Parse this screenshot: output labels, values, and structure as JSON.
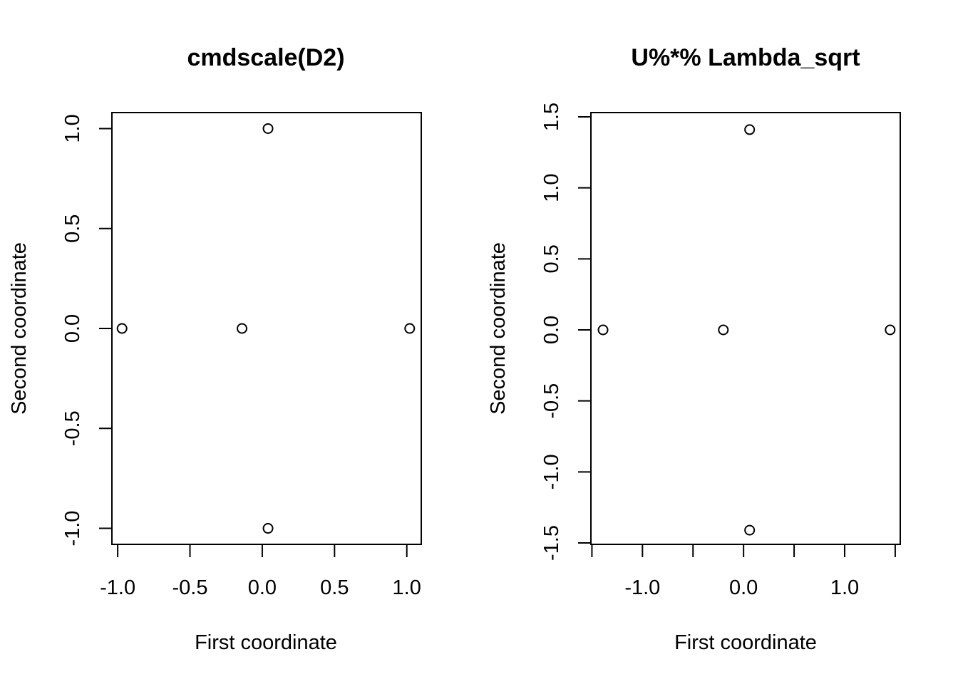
{
  "chart_data": [
    {
      "type": "scatter",
      "title": "cmdscale(D2)",
      "xlabel": "First coordinate",
      "ylabel": "Second coordinate",
      "xlim": [
        -1.04,
        1.1
      ],
      "ylim": [
        -1.08,
        1.08
      ],
      "x_ticks": [
        -1.0,
        -0.5,
        0.0,
        0.5,
        1.0
      ],
      "x_tick_labels": [
        "-1.0",
        "-0.5",
        "0.0",
        "0.5",
        "1.0"
      ],
      "y_ticks": [
        -1.0,
        -0.5,
        0.0,
        0.5,
        1.0
      ],
      "y_tick_labels": [
        "-1.0",
        "-0.5",
        "0.0",
        "0.5",
        "1.0"
      ],
      "grid": false,
      "marker": "open-circle",
      "points": [
        {
          "x": -0.97,
          "y": 0.0
        },
        {
          "x": -0.14,
          "y": 0.0
        },
        {
          "x": 0.04,
          "y": 1.0
        },
        {
          "x": 0.04,
          "y": -1.0
        },
        {
          "x": 1.02,
          "y": 0.0
        }
      ]
    },
    {
      "type": "scatter",
      "title": "U%*% Lambda_sqrt",
      "xlabel": "First coordinate",
      "ylabel": "Second coordinate",
      "xlim": [
        -1.51,
        1.55
      ],
      "ylim": [
        -1.51,
        1.53
      ],
      "x_ticks": [
        -1.5,
        -1.0,
        -0.5,
        0.0,
        0.5,
        1.0,
        1.5
      ],
      "x_tick_labels": [
        "",
        "-1.0",
        "",
        "0.0",
        "",
        "1.0",
        ""
      ],
      "y_ticks": [
        -1.5,
        -1.0,
        -0.5,
        0.0,
        0.5,
        1.0,
        1.5
      ],
      "y_tick_labels": [
        "-1.5",
        "-1.0",
        "-0.5",
        "0.0",
        "0.5",
        "1.0",
        "1.5"
      ],
      "grid": false,
      "marker": "open-circle",
      "points": [
        {
          "x": -1.39,
          "y": 0.0
        },
        {
          "x": -0.2,
          "y": 0.0
        },
        {
          "x": 0.06,
          "y": 1.41
        },
        {
          "x": 0.06,
          "y": -1.41
        },
        {
          "x": 1.45,
          "y": 0.0
        }
      ]
    }
  ]
}
